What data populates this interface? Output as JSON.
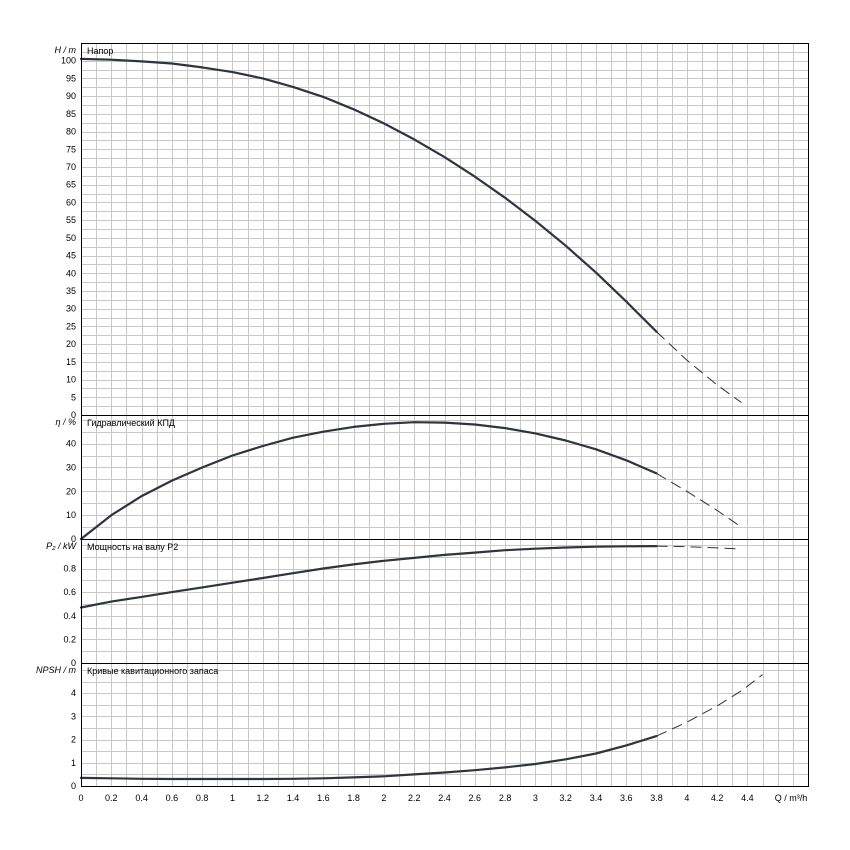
{
  "chart_data": {
    "type": "line",
    "x_axis": {
      "label": "Q / m³/h",
      "range": [
        0,
        4.8
      ],
      "ticks": [
        "0",
        "0.2",
        "0.4",
        "0.6",
        "0.8",
        "1",
        "1.2",
        "1.4",
        "1.6",
        "1.8",
        "2",
        "2.2",
        "2.4",
        "2.6",
        "2.8",
        "3",
        "3.2",
        "3.4",
        "3.6",
        "3.8",
        "4",
        "4.2",
        "4.4",
        "Q / m³/h"
      ]
    },
    "grid": true,
    "colors": {
      "curve": "#2e3440",
      "grid": "#c8c8c8"
    },
    "panels": [
      {
        "title": "Напор",
        "ylabel": "H / m",
        "ylim": [
          0,
          105
        ],
        "y_ticks": [
          0,
          5,
          10,
          15,
          20,
          25,
          30,
          35,
          40,
          45,
          50,
          55,
          60,
          65,
          70,
          75,
          80,
          85,
          90,
          95,
          100
        ],
        "solid": {
          "x": [
            0,
            0.2,
            0.4,
            0.6,
            0.8,
            1.0,
            1.2,
            1.4,
            1.6,
            1.8,
            2.0,
            2.2,
            2.4,
            2.6,
            2.8,
            3.0,
            3.2,
            3.4,
            3.6,
            3.8
          ],
          "y": [
            100.5,
            100.3,
            99.8,
            99.2,
            98.1,
            96.8,
            95.0,
            92.6,
            89.8,
            86.3,
            82.3,
            77.8,
            72.8,
            67.3,
            61.3,
            54.8,
            47.8,
            40.2,
            32.0,
            23.5
          ]
        },
        "dashed": {
          "x": [
            3.8,
            4.0,
            4.2,
            4.36
          ],
          "y": [
            23.5,
            15.5,
            8.5,
            3.5
          ]
        }
      },
      {
        "title": "Гидравлический КПД",
        "ylabel": "η / %",
        "ylim": [
          0,
          52
        ],
        "y_ticks": [
          0,
          10,
          20,
          30,
          40
        ],
        "solid": {
          "x": [
            0,
            0.2,
            0.4,
            0.6,
            0.8,
            1.0,
            1.2,
            1.4,
            1.6,
            1.8,
            2.0,
            2.2,
            2.4,
            2.6,
            2.8,
            3.0,
            3.2,
            3.4,
            3.6,
            3.8
          ],
          "y": [
            0,
            10,
            18,
            24.5,
            30,
            35,
            39,
            42.5,
            45,
            47,
            48.3,
            49,
            48.8,
            48,
            46.5,
            44.3,
            41.3,
            37.6,
            33,
            27.5
          ]
        },
        "dashed": {
          "x": [
            3.8,
            4.0,
            4.2,
            4.36
          ],
          "y": [
            27.5,
            20,
            12,
            5
          ]
        }
      },
      {
        "title": "Мощность на валу P2",
        "ylabel": "P₂ / kW",
        "ylim": [
          0,
          1.05
        ],
        "y_ticks": [
          0,
          0.2,
          0.4,
          0.6,
          0.8
        ],
        "solid": {
          "x": [
            0,
            0.2,
            0.4,
            0.6,
            0.8,
            1.0,
            1.2,
            1.4,
            1.6,
            1.8,
            2.0,
            2.2,
            2.4,
            2.6,
            2.8,
            3.0,
            3.2,
            3.4,
            3.6,
            3.8
          ],
          "y": [
            0.47,
            0.52,
            0.56,
            0.6,
            0.64,
            0.68,
            0.72,
            0.76,
            0.8,
            0.835,
            0.865,
            0.89,
            0.915,
            0.935,
            0.955,
            0.968,
            0.978,
            0.985,
            0.988,
            0.99
          ]
        },
        "dashed": {
          "x": [
            3.8,
            4.0,
            4.2,
            4.36
          ],
          "y": [
            0.99,
            0.985,
            0.975,
            0.965
          ]
        }
      },
      {
        "title": "Кривые кавитационного запаса",
        "ylabel": "NPSH / m",
        "ylim": [
          0,
          5.3
        ],
        "y_ticks": [
          0,
          1,
          2,
          3,
          4
        ],
        "solid": {
          "x": [
            0,
            0.2,
            0.4,
            0.6,
            0.8,
            1.0,
            1.2,
            1.4,
            1.6,
            1.8,
            2.0,
            2.2,
            2.4,
            2.6,
            2.8,
            3.0,
            3.2,
            3.4,
            3.6,
            3.8
          ],
          "y": [
            0.35,
            0.33,
            0.31,
            0.3,
            0.3,
            0.3,
            0.3,
            0.31,
            0.33,
            0.37,
            0.42,
            0.5,
            0.58,
            0.68,
            0.8,
            0.95,
            1.15,
            1.4,
            1.75,
            2.15
          ]
        },
        "dashed": {
          "x": [
            3.8,
            4.0,
            4.2,
            4.36,
            4.5
          ],
          "y": [
            2.15,
            2.75,
            3.45,
            4.1,
            4.8
          ]
        }
      }
    ]
  }
}
